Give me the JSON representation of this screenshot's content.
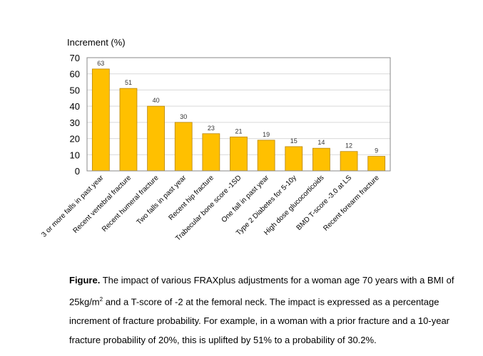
{
  "chart_data": {
    "type": "bar",
    "ylabel": "Increment (%)",
    "ylim": [
      0,
      70
    ],
    "yticks": [
      0,
      10,
      20,
      30,
      40,
      50,
      60,
      70
    ],
    "grid": true,
    "bar_color": "#FFC000",
    "bar_edge_color": "#B8860B",
    "categories": [
      "3 or more falls in past year",
      "Recent vertebral fracture",
      "Recent humeral fracture",
      "Two falls in past year",
      "Recent hip fracture",
      "Trabecular bone score -1SD",
      "One fall in past year",
      "Type 2 Diabetes for 5-10y",
      "High dose glucocorticoids",
      "BMD T-score -3.0 at LS",
      "Recent forearm fracture"
    ],
    "values": [
      63,
      51,
      40,
      30,
      23,
      21,
      19,
      15,
      14,
      12,
      9
    ],
    "data_labels": [
      "63",
      "51",
      "40",
      "30",
      "23",
      "21",
      "19",
      "15",
      "14",
      "12",
      "9"
    ]
  },
  "caption": {
    "label": "Figure.",
    "text_part1": " The impact of various FRAXplus adjustments for a woman age 70 years with a BMI of 25kg/m",
    "superscript": "2",
    "text_part2": " and a T-score of -2 at the femoral neck. The impact is expressed as a percentage increment of fracture probability.  For example, in a woman with a prior fracture and a 10-year fracture probability of 20%, this is uplifted by 51% to a probability of 30.2%."
  }
}
